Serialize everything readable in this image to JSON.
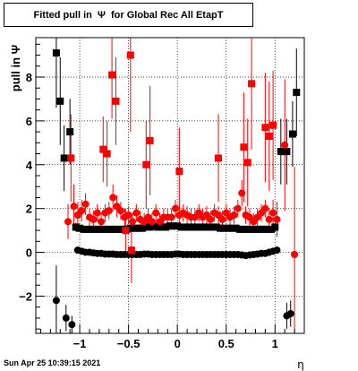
{
  "chart_data": {
    "type": "scatter",
    "title": "Fitted pull in  Ψ  for Global Rec All EtapT",
    "xlabel": "η",
    "ylabel": "pull in  Ψ",
    "xlim": [
      -1.45,
      1.3
    ],
    "ylim": [
      -3.7,
      9.8
    ],
    "xticks": [
      -1,
      -0.5,
      0,
      0.5,
      1
    ],
    "xtick_labels": [
      "−1",
      "−0.5",
      "0",
      "0.5",
      "1"
    ],
    "yticks": [
      -2,
      0,
      2,
      4,
      6,
      8
    ],
    "ytick_labels": [
      "−2",
      "0",
      "2",
      "4",
      "6",
      "8"
    ],
    "grid": true,
    "series": [
      {
        "marker": "circle",
        "color": "#000000",
        "points": [
          [
            -1.24,
            -2.2,
            1.6
          ],
          [
            -1.14,
            -3.0,
            0.6
          ],
          [
            -1.08,
            -3.3,
            0.4
          ],
          [
            -1.02,
            0.1,
            0.15
          ],
          [
            -0.98,
            0.05,
            0.1
          ],
          [
            -0.94,
            0.0,
            0.1
          ],
          [
            -0.9,
            0.0,
            0.1
          ],
          [
            -0.86,
            -0.03,
            0.1
          ],
          [
            -0.82,
            -0.05,
            0.1
          ],
          [
            -0.78,
            -0.05,
            0.1
          ],
          [
            -0.74,
            -0.08,
            0.1
          ],
          [
            -0.7,
            -0.08,
            0.1
          ],
          [
            -0.66,
            -0.08,
            0.1
          ],
          [
            -0.62,
            -0.1,
            0.1
          ],
          [
            -0.58,
            -0.1,
            0.1
          ],
          [
            -0.54,
            -0.1,
            0.1
          ],
          [
            -0.5,
            -0.1,
            0.1
          ],
          [
            -0.46,
            -0.1,
            0.1
          ],
          [
            -0.42,
            -0.1,
            0.1
          ],
          [
            -0.38,
            -0.1,
            0.1
          ],
          [
            -0.34,
            -0.08,
            0.1
          ],
          [
            -0.3,
            -0.08,
            0.1
          ],
          [
            -0.26,
            -0.1,
            0.1
          ],
          [
            -0.22,
            -0.1,
            0.1
          ],
          [
            -0.18,
            -0.1,
            0.1
          ],
          [
            -0.14,
            -0.1,
            0.1
          ],
          [
            -0.1,
            -0.1,
            0.1
          ],
          [
            -0.06,
            -0.1,
            0.1
          ],
          [
            -0.02,
            -0.08,
            0.1
          ],
          [
            0.02,
            -0.08,
            0.1
          ],
          [
            0.06,
            -0.1,
            0.1
          ],
          [
            0.1,
            -0.1,
            0.1
          ],
          [
            0.14,
            -0.1,
            0.1
          ],
          [
            0.18,
            -0.1,
            0.1
          ],
          [
            0.22,
            -0.1,
            0.1
          ],
          [
            0.26,
            -0.1,
            0.1
          ],
          [
            0.3,
            -0.1,
            0.1
          ],
          [
            0.34,
            -0.1,
            0.1
          ],
          [
            0.38,
            -0.1,
            0.1
          ],
          [
            0.42,
            -0.1,
            0.1
          ],
          [
            0.46,
            -0.1,
            0.1
          ],
          [
            0.5,
            -0.1,
            0.1
          ],
          [
            0.54,
            -0.1,
            0.1
          ],
          [
            0.58,
            -0.1,
            0.1
          ],
          [
            0.62,
            -0.1,
            0.1
          ],
          [
            0.66,
            -0.12,
            0.1
          ],
          [
            0.7,
            -0.15,
            0.1
          ],
          [
            0.74,
            -0.12,
            0.1
          ],
          [
            0.78,
            -0.1,
            0.1
          ],
          [
            0.82,
            -0.08,
            0.1
          ],
          [
            0.86,
            -0.05,
            0.1
          ],
          [
            0.9,
            -0.05,
            0.1
          ],
          [
            0.94,
            0.0,
            0.1
          ],
          [
            0.98,
            0.05,
            0.1
          ],
          [
            1.02,
            0.1,
            0.15
          ],
          [
            1.12,
            -2.9,
            0.6
          ],
          [
            1.16,
            -2.8,
            0.6
          ]
        ]
      },
      {
        "marker": "square",
        "color": "#000000",
        "points": [
          [
            -1.24,
            9.1,
            2.5
          ],
          [
            -1.2,
            6.9,
            2.0
          ],
          [
            -1.16,
            4.3,
            1.5
          ],
          [
            -1.1,
            5.5,
            1.5
          ],
          [
            -1.04,
            1.15,
            0.2
          ],
          [
            -1.0,
            1.1,
            0.15
          ],
          [
            -0.96,
            1.05,
            0.15
          ],
          [
            -0.92,
            1.05,
            0.1
          ],
          [
            -0.88,
            1.05,
            0.1
          ],
          [
            -0.84,
            1.05,
            0.1
          ],
          [
            -0.8,
            1.05,
            0.1
          ],
          [
            -0.76,
            1.05,
            0.1
          ],
          [
            -0.72,
            1.05,
            0.1
          ],
          [
            -0.68,
            1.05,
            0.1
          ],
          [
            -0.64,
            1.05,
            0.1
          ],
          [
            -0.6,
            1.05,
            0.1
          ],
          [
            -0.56,
            1.05,
            0.1
          ],
          [
            -0.52,
            1.05,
            0.1
          ],
          [
            -0.48,
            1.1,
            0.1
          ],
          [
            -0.44,
            1.1,
            0.1
          ],
          [
            -0.4,
            1.1,
            0.1
          ],
          [
            -0.36,
            1.1,
            0.1
          ],
          [
            -0.32,
            1.15,
            0.1
          ],
          [
            -0.28,
            1.15,
            0.1
          ],
          [
            -0.24,
            1.2,
            0.1
          ],
          [
            -0.2,
            1.15,
            0.1
          ],
          [
            -0.16,
            1.15,
            0.1
          ],
          [
            -0.12,
            1.15,
            0.1
          ],
          [
            -0.08,
            1.2,
            0.1
          ],
          [
            -0.04,
            1.2,
            0.1
          ],
          [
            0.0,
            1.2,
            0.1
          ],
          [
            0.04,
            1.15,
            0.1
          ],
          [
            0.08,
            1.15,
            0.1
          ],
          [
            0.12,
            1.15,
            0.1
          ],
          [
            0.16,
            1.15,
            0.1
          ],
          [
            0.2,
            1.15,
            0.1
          ],
          [
            0.24,
            1.15,
            0.1
          ],
          [
            0.28,
            1.15,
            0.1
          ],
          [
            0.32,
            1.15,
            0.1
          ],
          [
            0.36,
            1.15,
            0.1
          ],
          [
            0.4,
            1.15,
            0.1
          ],
          [
            0.44,
            1.1,
            0.1
          ],
          [
            0.48,
            1.1,
            0.1
          ],
          [
            0.52,
            1.1,
            0.1
          ],
          [
            0.56,
            1.1,
            0.1
          ],
          [
            0.6,
            1.1,
            0.1
          ],
          [
            0.64,
            1.05,
            0.1
          ],
          [
            0.68,
            1.05,
            0.1
          ],
          [
            0.72,
            1.05,
            0.1
          ],
          [
            0.76,
            1.05,
            0.1
          ],
          [
            0.8,
            1.05,
            0.1
          ],
          [
            0.84,
            1.05,
            0.1
          ],
          [
            0.88,
            1.05,
            0.1
          ],
          [
            0.92,
            1.05,
            0.1
          ],
          [
            0.96,
            1.05,
            0.1
          ],
          [
            1.0,
            1.15,
            0.2
          ],
          [
            1.06,
            4.6,
            1.5
          ],
          [
            1.12,
            4.6,
            1.5
          ],
          [
            1.18,
            5.4,
            1.5
          ],
          [
            1.22,
            7.3,
            2.0
          ]
        ]
      },
      {
        "marker": "circle",
        "color": "#ff0000",
        "points": [
          [
            -1.12,
            1.4,
            0.8
          ],
          [
            -1.06,
            2.1,
            1.0
          ],
          [
            -1.02,
            1.7,
            0.6
          ],
          [
            -0.98,
            1.9,
            0.5
          ],
          [
            -0.94,
            2.2,
            0.5
          ],
          [
            -0.9,
            1.6,
            0.4
          ],
          [
            -0.86,
            1.5,
            0.4
          ],
          [
            -0.82,
            1.8,
            0.4
          ],
          [
            -0.78,
            1.4,
            0.4
          ],
          [
            -0.74,
            1.8,
            0.4
          ],
          [
            -0.7,
            1.9,
            0.4
          ],
          [
            -0.66,
            2.5,
            0.6
          ],
          [
            -0.62,
            2.1,
            0.5
          ],
          [
            -0.58,
            1.9,
            0.4
          ],
          [
            -0.54,
            1.6,
            0.4
          ],
          [
            -0.5,
            1.7,
            0.4
          ],
          [
            -0.46,
            1.4,
            0.4
          ],
          [
            -0.42,
            1.8,
            0.4
          ],
          [
            -0.38,
            1.5,
            0.4
          ],
          [
            -0.34,
            1.4,
            0.4
          ],
          [
            -0.3,
            1.6,
            0.4
          ],
          [
            -0.26,
            1.4,
            0.4
          ],
          [
            -0.22,
            1.8,
            0.4
          ],
          [
            -0.18,
            1.4,
            0.4
          ],
          [
            -0.14,
            1.6,
            0.4
          ],
          [
            -0.1,
            1.6,
            0.4
          ],
          [
            -0.06,
            1.6,
            0.4
          ],
          [
            -0.02,
            2.0,
            0.4
          ],
          [
            0.02,
            1.7,
            0.4
          ],
          [
            0.06,
            1.8,
            0.4
          ],
          [
            0.1,
            1.7,
            0.4
          ],
          [
            0.14,
            1.6,
            0.4
          ],
          [
            0.18,
            1.6,
            0.4
          ],
          [
            0.22,
            1.8,
            0.4
          ],
          [
            0.26,
            1.6,
            0.4
          ],
          [
            0.3,
            1.7,
            0.4
          ],
          [
            0.34,
            1.5,
            0.4
          ],
          [
            0.38,
            1.8,
            0.4
          ],
          [
            0.42,
            1.7,
            0.4
          ],
          [
            0.46,
            1.5,
            0.4
          ],
          [
            0.5,
            1.8,
            0.4
          ],
          [
            0.54,
            1.6,
            0.4
          ],
          [
            0.58,
            1.7,
            0.4
          ],
          [
            0.62,
            2.0,
            0.4
          ],
          [
            0.66,
            2.7,
            0.6
          ],
          [
            0.7,
            1.7,
            0.4
          ],
          [
            0.74,
            1.6,
            0.4
          ],
          [
            0.78,
            1.4,
            0.4
          ],
          [
            0.82,
            1.6,
            0.4
          ],
          [
            0.86,
            1.8,
            0.4
          ],
          [
            0.9,
            2.0,
            0.4
          ],
          [
            0.94,
            1.5,
            0.5
          ],
          [
            0.98,
            1.8,
            0.6
          ],
          [
            1.02,
            1.5,
            0.8
          ],
          [
            1.1,
            4.9,
            3.0
          ],
          [
            1.2,
            -0.1,
            4.0
          ]
        ]
      },
      {
        "marker": "square",
        "color": "#ff0000",
        "points": [
          [
            -1.09,
            4.3,
            2.0
          ],
          [
            -0.76,
            4.7,
            1.5
          ],
          [
            -0.72,
            4.5,
            1.5
          ],
          [
            -0.67,
            8.1,
            2.0
          ],
          [
            -0.63,
            6.9,
            2.0
          ],
          [
            -0.53,
            1.0,
            1.0
          ],
          [
            -0.48,
            9.0,
            3.5
          ],
          [
            -0.47,
            0.1,
            1.5
          ],
          [
            -0.32,
            4.0,
            2.0
          ],
          [
            -0.28,
            5.1,
            2.5
          ],
          [
            0.02,
            3.7,
            2.0
          ],
          [
            0.42,
            4.3,
            2.0
          ],
          [
            0.68,
            4.8,
            2.5
          ],
          [
            0.72,
            4.1,
            2.0
          ],
          [
            0.76,
            7.7,
            3.0
          ],
          [
            0.9,
            5.7,
            2.5
          ],
          [
            0.94,
            5.3,
            2.5
          ],
          [
            0.98,
            5.8,
            2.5
          ]
        ]
      }
    ]
  },
  "footer": {
    "timestamp": "Sun Apr 25 10:39:15 2021"
  }
}
